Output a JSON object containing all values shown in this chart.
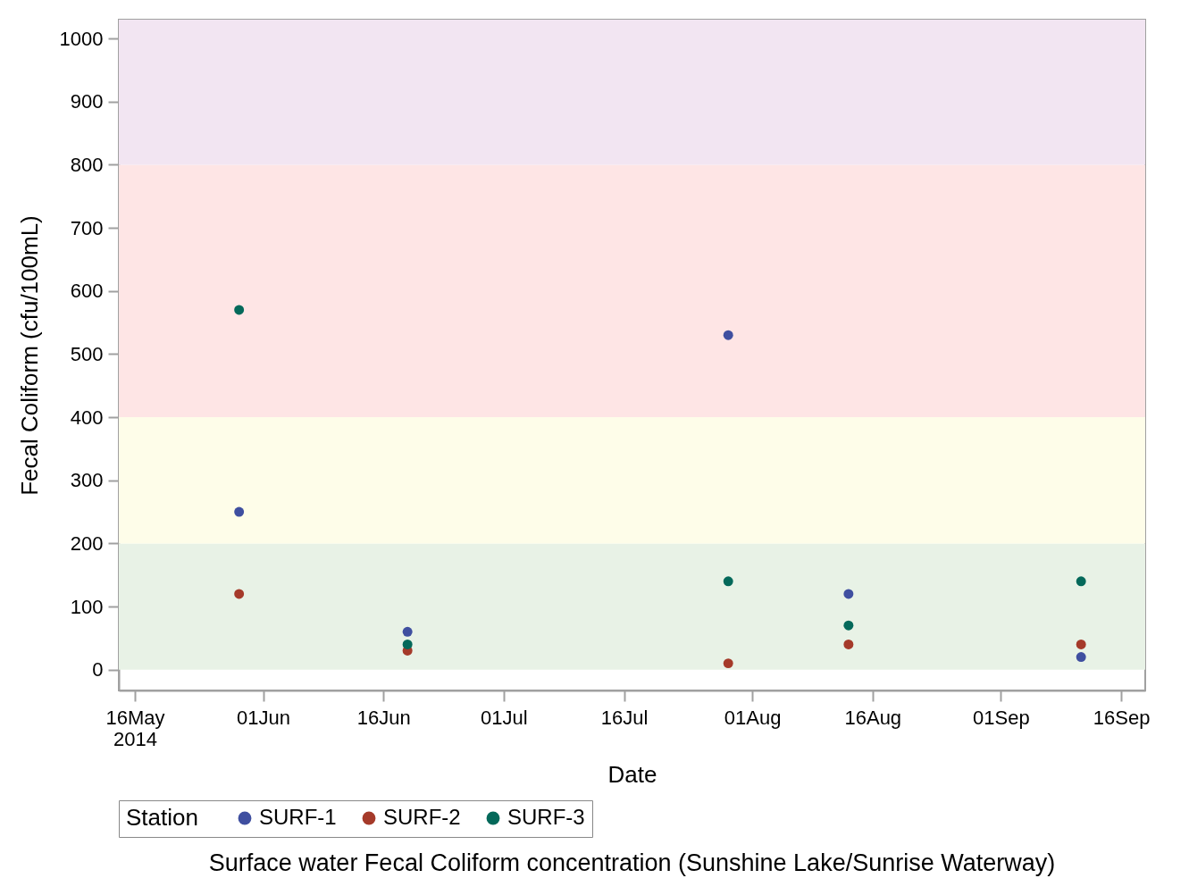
{
  "chart_data": {
    "type": "scatter",
    "title": "Surface water Fecal Coliform concentration (Sunshine Lake/Sunrise Waterway)",
    "xlabel": "Date",
    "ylabel": "Fecal Coliform (cfu/100mL)",
    "legend_title": "Station",
    "legend": "bottom",
    "marker": "circle",
    "x": [
      "2014-05-29",
      "2014-06-19",
      "2014-07-29",
      "2014-08-13",
      "2014-09-11"
    ],
    "series": [
      {
        "name": "SURF-1",
        "color": "#3f4fa0",
        "values": [
          250,
          60,
          530,
          120,
          20
        ]
      },
      {
        "name": "SURF-2",
        "color": "#a53a2a",
        "values": [
          120,
          30,
          10,
          40,
          40
        ]
      },
      {
        "name": "SURF-3",
        "color": "#04695a",
        "values": [
          570,
          40,
          140,
          70,
          140
        ]
      }
    ],
    "xlim": [
      "2014-05-14",
      "2014-09-19"
    ],
    "xticks": [
      {
        "value": "2014-05-16",
        "label": "16May 2014"
      },
      {
        "value": "2014-06-01",
        "label": "01Jun"
      },
      {
        "value": "2014-06-16",
        "label": "16Jun"
      },
      {
        "value": "2014-07-01",
        "label": "01Jul"
      },
      {
        "value": "2014-07-16",
        "label": "16Jul"
      },
      {
        "value": "2014-08-01",
        "label": "01Aug"
      },
      {
        "value": "2014-08-16",
        "label": "16Aug"
      },
      {
        "value": "2014-09-01",
        "label": "01Sep"
      },
      {
        "value": "2014-09-16",
        "label": "16Sep"
      }
    ],
    "ylim": [
      -33,
      1030
    ],
    "yticks": [
      0,
      100,
      200,
      300,
      400,
      500,
      600,
      700,
      800,
      900,
      1000
    ],
    "bands": [
      {
        "axis": "y",
        "from": 0,
        "to": 200,
        "color": "#e8f2e6"
      },
      {
        "axis": "y",
        "from": 200,
        "to": 400,
        "color": "#fefde9"
      },
      {
        "axis": "y",
        "from": 400,
        "to": 800,
        "color": "#fee5e5"
      },
      {
        "axis": "y",
        "from": 800,
        "to": 1030,
        "color": "#f2e5f2"
      }
    ]
  }
}
